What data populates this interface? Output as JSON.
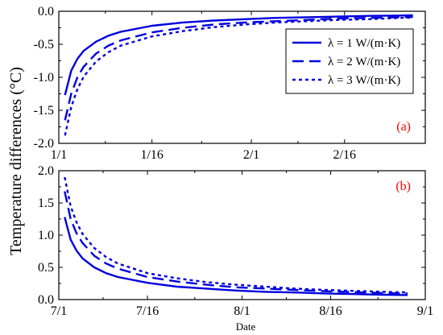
{
  "chart_data": {
    "type": "line",
    "ylabel": "Temperature differences (°C)",
    "xlabel": "Date",
    "legend_placement": "top-right of panel (a)",
    "colors": {
      "series": "#0000dd",
      "panel_label": "#ff0000"
    },
    "panels": [
      {
        "label": "(a)",
        "x_ticks": [
          "1/1",
          "1/16",
          "2/1",
          "2/16"
        ],
        "xlim_days": [
          0,
          59
        ],
        "ylim": [
          -2.0,
          0.0
        ],
        "y_ticks": [
          "-2.0",
          "-1.5",
          "-1.0",
          "-0.5",
          "0.0"
        ],
        "series": [
          {
            "name": "λ = 1 W/(m·K)",
            "style": "solid",
            "x": [
              1,
              2,
              3,
              4,
              6,
              8,
              10,
              15,
              20,
              25,
              30,
              35,
              40,
              45,
              50,
              55,
              57
            ],
            "y": [
              -1.27,
              -0.9,
              -0.72,
              -0.6,
              -0.46,
              -0.37,
              -0.31,
              -0.22,
              -0.17,
              -0.14,
              -0.12,
              -0.1,
              -0.09,
              -0.08,
              -0.07,
              -0.065,
              -0.06
            ]
          },
          {
            "name": "λ = 2 W/(m·K)",
            "style": "dashed",
            "x": [
              1,
              2,
              3,
              4,
              6,
              8,
              10,
              15,
              20,
              25,
              30,
              35,
              40,
              45,
              50,
              55,
              57
            ],
            "y": [
              -1.65,
              -1.25,
              -1.0,
              -0.84,
              -0.64,
              -0.52,
              -0.44,
              -0.32,
              -0.25,
              -0.2,
              -0.17,
              -0.15,
              -0.13,
              -0.11,
              -0.1,
              -0.09,
              -0.085
            ]
          },
          {
            "name": "λ = 3 W/(m·K)",
            "style": "dotted",
            "x": [
              1,
              2,
              3,
              4,
              6,
              8,
              10,
              15,
              20,
              25,
              30,
              35,
              40,
              45,
              50,
              55,
              57
            ],
            "y": [
              -1.88,
              -1.45,
              -1.18,
              -0.99,
              -0.76,
              -0.62,
              -0.52,
              -0.38,
              -0.3,
              -0.24,
              -0.2,
              -0.17,
              -0.15,
              -0.13,
              -0.12,
              -0.1,
              -0.095
            ]
          }
        ]
      },
      {
        "label": "(b)",
        "x_ticks": [
          "7/1",
          "7/16",
          "8/1",
          "8/16",
          "9/1"
        ],
        "xlim_days": [
          0,
          62
        ],
        "ylim": [
          0.0,
          2.0
        ],
        "y_ticks": [
          "0.0",
          "0.5",
          "1.0",
          "1.5",
          "2.0"
        ],
        "series": [
          {
            "name": "λ = 1 W/(m·K)",
            "style": "solid",
            "x": [
              1,
              2,
              3,
              4,
              6,
              8,
              10,
              15,
              20,
              25,
              30,
              35,
              40,
              45,
              50,
              55,
              59
            ],
            "y": [
              1.28,
              0.93,
              0.76,
              0.64,
              0.5,
              0.41,
              0.35,
              0.26,
              0.2,
              0.17,
              0.14,
              0.12,
              0.11,
              0.095,
              0.085,
              0.075,
              0.07
            ]
          },
          {
            "name": "λ = 2 W/(m·K)",
            "style": "dashed",
            "x": [
              1,
              2,
              3,
              4,
              6,
              8,
              10,
              15,
              20,
              25,
              30,
              35,
              40,
              45,
              50,
              55,
              59
            ],
            "y": [
              1.68,
              1.25,
              1.03,
              0.88,
              0.68,
              0.56,
              0.48,
              0.35,
              0.28,
              0.23,
              0.19,
              0.17,
              0.15,
              0.13,
              0.115,
              0.1,
              0.095
            ]
          },
          {
            "name": "λ = 3 W/(m·K)",
            "style": "dotted",
            "x": [
              1,
              2,
              3,
              4,
              6,
              8,
              10,
              15,
              20,
              25,
              30,
              35,
              40,
              45,
              50,
              55,
              59
            ],
            "y": [
              1.9,
              1.45,
              1.2,
              1.02,
              0.8,
              0.66,
              0.56,
              0.41,
              0.33,
              0.27,
              0.23,
              0.2,
              0.17,
              0.15,
              0.135,
              0.12,
              0.11
            ]
          }
        ]
      }
    ]
  }
}
